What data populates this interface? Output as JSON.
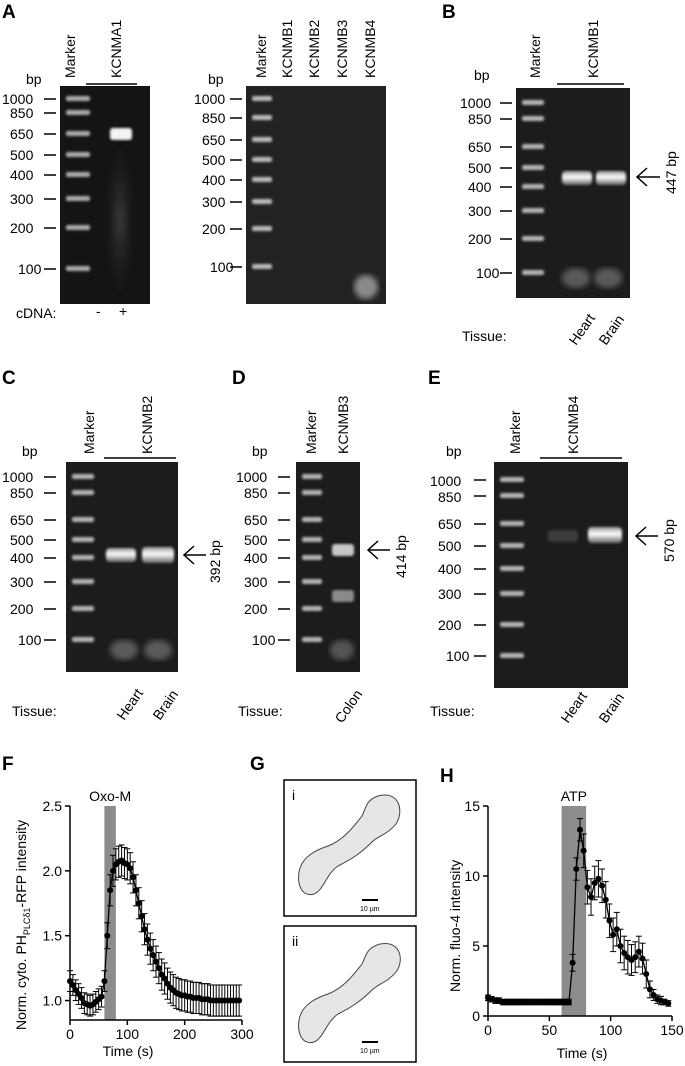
{
  "panels": {
    "A": {
      "letter": "A",
      "left": {
        "bp": "bp",
        "marker": "Marker",
        "lane": "KCNMA1",
        "ladder": [
          "1000",
          "850",
          "650",
          "500",
          "400",
          "300",
          "200",
          "100"
        ],
        "cdna_label": "cDNA:",
        "cdna_minus": "-",
        "cdna_plus": "+"
      },
      "right": {
        "bp": "bp",
        "marker": "Marker",
        "lanes": [
          "KCNMB1",
          "KCNMB2",
          "KCNMB3",
          "KCNMB4"
        ],
        "ladder": [
          "1000",
          "850",
          "650",
          "500",
          "400",
          "300",
          "200",
          "100"
        ]
      }
    },
    "B": {
      "letter": "B",
      "bp": "bp",
      "marker": "Marker",
      "lane": "KCNMB1",
      "ladder": [
        "1000",
        "850",
        "650",
        "500",
        "400",
        "300",
        "200",
        "100"
      ],
      "band": "447 bp",
      "tissue_label": "Tissue:",
      "tissues": [
        "Heart",
        "Brain"
      ]
    },
    "C": {
      "letter": "C",
      "bp": "bp",
      "marker": "Marker",
      "lane": "KCNMB2",
      "ladder": [
        "1000",
        "850",
        "650",
        "500",
        "400",
        "300",
        "200",
        "100"
      ],
      "band": "392 bp",
      "tissue_label": "Tissue:",
      "tissues": [
        "Heart",
        "Brain"
      ]
    },
    "D": {
      "letter": "D",
      "bp": "bp",
      "marker": "Marker",
      "lane": "KCNMB3",
      "ladder": [
        "1000",
        "850",
        "650",
        "500",
        "400",
        "300",
        "200",
        "100"
      ],
      "band": "414 bp",
      "tissue_label": "Tissue:",
      "tissues": [
        "Colon"
      ]
    },
    "E": {
      "letter": "E",
      "bp": "bp",
      "marker": "Marker",
      "lane": "KCNMB4",
      "ladder": [
        "1000",
        "850",
        "650",
        "500",
        "400",
        "300",
        "200",
        "100"
      ],
      "band": "570 bp",
      "tissue_label": "Tissue:",
      "tissues": [
        "Heart",
        "Brain"
      ]
    },
    "F": {
      "letter": "F",
      "stimulus": "Oxo-M"
    },
    "G": {
      "letter": "G",
      "cell1": "i",
      "cell2": "ii",
      "scalebar": "10 µm"
    },
    "H": {
      "letter": "H",
      "stimulus": "ATP"
    }
  },
  "chart_data": [
    {
      "type": "line",
      "panel": "F",
      "title": "",
      "xlabel": "Time (s)",
      "ylabel": "Norm. cyto. PH",
      "ylabel_sub": "PLCδ1",
      "ylabel_tail": "-RFP intensity",
      "xlim": [
        0,
        300
      ],
      "ylim": [
        0.85,
        2.5
      ],
      "xticks": [
        "0",
        "100",
        "200",
        "300"
      ],
      "yticks": [
        "1.0",
        "1.5",
        "2.0",
        "2.5"
      ],
      "stimulus_window": [
        60,
        80
      ],
      "grid": false,
      "x": [
        0,
        5,
        10,
        15,
        20,
        25,
        30,
        35,
        40,
        45,
        50,
        55,
        60,
        65,
        70,
        75,
        80,
        85,
        90,
        95,
        100,
        105,
        110,
        115,
        120,
        125,
        130,
        135,
        140,
        145,
        150,
        155,
        160,
        165,
        170,
        175,
        180,
        185,
        190,
        195,
        200,
        205,
        210,
        215,
        220,
        225,
        230,
        235,
        240,
        245,
        250,
        255,
        260,
        265,
        270,
        275,
        280,
        285,
        290,
        295
      ],
      "y": [
        1.15,
        1.12,
        1.08,
        1.05,
        1.02,
        0.98,
        0.97,
        0.96,
        0.97,
        0.99,
        1.01,
        1.03,
        1.15,
        1.5,
        1.85,
        2.0,
        2.05,
        2.07,
        2.08,
        2.06,
        2.05,
        2.02,
        1.95,
        1.85,
        1.75,
        1.65,
        1.55,
        1.47,
        1.4,
        1.35,
        1.3,
        1.25,
        1.2,
        1.17,
        1.13,
        1.1,
        1.08,
        1.06,
        1.05,
        1.04,
        1.04,
        1.03,
        1.03,
        1.02,
        1.02,
        1.02,
        1.01,
        1.01,
        1.01,
        1.0,
        1.0,
        1.0,
        1.0,
        1.0,
        1.0,
        1.0,
        1.0,
        1.0,
        1.0,
        1.0
      ],
      "err": [
        0.08,
        0.08,
        0.08,
        0.08,
        0.08,
        0.08,
        0.08,
        0.08,
        0.08,
        0.08,
        0.08,
        0.08,
        0.08,
        0.1,
        0.12,
        0.12,
        0.12,
        0.12,
        0.12,
        0.12,
        0.12,
        0.12,
        0.12,
        0.12,
        0.12,
        0.12,
        0.12,
        0.12,
        0.12,
        0.12,
        0.12,
        0.12,
        0.12,
        0.12,
        0.12,
        0.12,
        0.12,
        0.12,
        0.12,
        0.12,
        0.12,
        0.12,
        0.12,
        0.12,
        0.12,
        0.12,
        0.12,
        0.12,
        0.12,
        0.12,
        0.12,
        0.12,
        0.12,
        0.12,
        0.12,
        0.12,
        0.12,
        0.12,
        0.12,
        0.12
      ]
    },
    {
      "type": "line",
      "panel": "H",
      "title": "",
      "xlabel": "Time (s)",
      "ylabel": "Norm. fluo-4 intensity",
      "xlim": [
        0,
        150
      ],
      "ylim": [
        0,
        15
      ],
      "xticks": [
        "0",
        "50",
        "100",
        "150"
      ],
      "yticks": [
        "0",
        "5",
        "10",
        "15"
      ],
      "stimulus_window": [
        60,
        80
      ],
      "grid": false,
      "x": [
        0,
        3,
        6,
        9,
        12,
        15,
        18,
        21,
        24,
        27,
        30,
        33,
        36,
        39,
        42,
        45,
        48,
        51,
        54,
        57,
        60,
        63,
        66,
        69,
        72,
        75,
        78,
        81,
        84,
        87,
        90,
        93,
        96,
        99,
        102,
        105,
        108,
        111,
        114,
        117,
        120,
        123,
        126,
        129,
        132,
        135,
        138,
        141,
        144,
        147
      ],
      "y": [
        1.3,
        1.2,
        1.1,
        1.1,
        1.0,
        1.0,
        1.0,
        1.0,
        1.0,
        1.0,
        1.0,
        1.0,
        1.0,
        1.0,
        1.0,
        1.0,
        1.0,
        1.0,
        1.0,
        1.0,
        1.0,
        1.0,
        1.0,
        3.8,
        10.5,
        13.3,
        11.8,
        9.2,
        8.5,
        9.5,
        9.8,
        9.3,
        8.3,
        6.8,
        5.8,
        6.2,
        5.0,
        4.5,
        4.2,
        4.0,
        4.2,
        4.6,
        4.1,
        3.0,
        1.9,
        1.5,
        1.2,
        1.1,
        1.0,
        0.9
      ],
      "err": [
        0.2,
        0.2,
        0.2,
        0.2,
        0.2,
        0.2,
        0.2,
        0.2,
        0.2,
        0.2,
        0.2,
        0.2,
        0.2,
        0.2,
        0.2,
        0.2,
        0.2,
        0.2,
        0.2,
        0.2,
        0.2,
        0.2,
        0.2,
        0.6,
        0.8,
        0.8,
        1.2,
        1.2,
        1.3,
        1.2,
        1.3,
        1.2,
        1.3,
        1.2,
        1.2,
        1.2,
        1.2,
        1.2,
        1.2,
        1.1,
        1.1,
        1.1,
        1.1,
        1.0,
        0.6,
        0.4,
        0.3,
        0.3,
        0.2,
        0.2
      ]
    }
  ]
}
